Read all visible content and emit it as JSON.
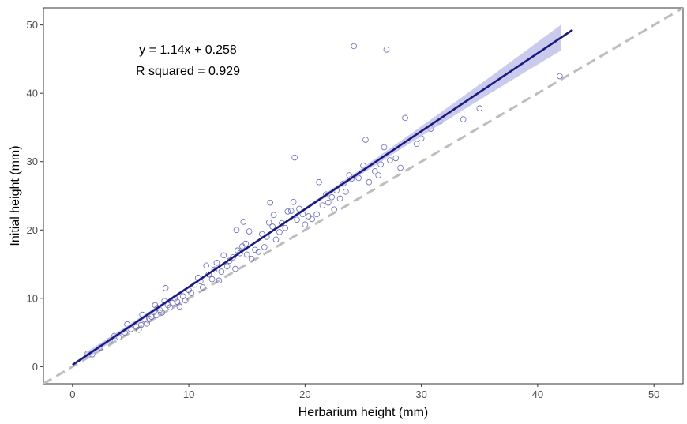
{
  "chart_data": {
    "type": "scatter",
    "title": "",
    "xlabel": "Herbarium height (mm)",
    "ylabel": "Initial height (mm)",
    "xlim": [
      -2.5,
      52.5
    ],
    "ylim": [
      -2.5,
      52.5
    ],
    "xticks": [
      0,
      10,
      20,
      30,
      40,
      50
    ],
    "yticks": [
      0,
      10,
      20,
      30,
      40,
      50
    ],
    "xtick_labels": [
      "0",
      "10",
      "20",
      "30",
      "40",
      "50"
    ],
    "ytick_labels": [
      "0",
      "10",
      "20",
      "30",
      "40",
      "50"
    ],
    "grid": false,
    "annotation": {
      "equation": "y = 1.14x + 0.258",
      "r_squared": "R squared = 0.929"
    },
    "fit": {
      "slope": 1.14,
      "intercept": 0.258,
      "x_range": [
        0,
        43
      ],
      "band_x_range": [
        1,
        42
      ],
      "color": "#1a1a80",
      "band_color": "#b8b8e6"
    },
    "identity_line": {
      "slope": 1,
      "intercept": 0,
      "style": "dashed",
      "color": "#bdbdbd"
    },
    "point_color": "#6a6ab8",
    "points": [
      [
        1.3,
        1.9
      ],
      [
        1.7,
        1.8
      ],
      [
        2.4,
        2.8
      ],
      [
        3.2,
        3.8
      ],
      [
        3.6,
        4.5
      ],
      [
        4.0,
        4.3
      ],
      [
        4.5,
        5.0
      ],
      [
        4.7,
        6.2
      ],
      [
        5.0,
        5.5
      ],
      [
        5.5,
        5.8
      ],
      [
        5.7,
        5.4
      ],
      [
        5.9,
        6.1
      ],
      [
        6.0,
        7.6
      ],
      [
        6.2,
        6.9
      ],
      [
        6.4,
        6.3
      ],
      [
        6.6,
        7.0
      ],
      [
        6.8,
        7.3
      ],
      [
        7.0,
        8.0
      ],
      [
        7.1,
        9.0
      ],
      [
        7.2,
        7.5
      ],
      [
        7.3,
        8.6
      ],
      [
        7.5,
        8.3
      ],
      [
        7.7,
        7.9
      ],
      [
        7.9,
        9.6
      ],
      [
        8.0,
        11.5
      ],
      [
        8.2,
        9.0
      ],
      [
        8.4,
        8.7
      ],
      [
        8.6,
        9.3
      ],
      [
        8.8,
        10.0
      ],
      [
        9.0,
        9.5
      ],
      [
        9.2,
        8.8
      ],
      [
        9.5,
        10.3
      ],
      [
        9.7,
        9.7
      ],
      [
        10.0,
        11.2
      ],
      [
        10.2,
        10.8
      ],
      [
        10.5,
        12.0
      ],
      [
        10.8,
        13.0
      ],
      [
        11.0,
        12.5
      ],
      [
        11.2,
        11.6
      ],
      [
        11.5,
        14.8
      ],
      [
        11.7,
        13.5
      ],
      [
        12.0,
        12.8
      ],
      [
        12.2,
        14.2
      ],
      [
        12.4,
        15.2
      ],
      [
        12.6,
        12.6
      ],
      [
        12.8,
        13.9
      ],
      [
        13.0,
        16.3
      ],
      [
        13.3,
        14.7
      ],
      [
        13.5,
        15.5
      ],
      [
        13.8,
        16.0
      ],
      [
        14.0,
        14.3
      ],
      [
        14.1,
        20.0
      ],
      [
        14.2,
        17.0
      ],
      [
        14.4,
        16.6
      ],
      [
        14.6,
        17.6
      ],
      [
        14.7,
        21.2
      ],
      [
        14.9,
        18.0
      ],
      [
        15.0,
        16.4
      ],
      [
        15.2,
        19.8
      ],
      [
        15.4,
        15.8
      ],
      [
        15.7,
        17.1
      ],
      [
        16.0,
        16.8
      ],
      [
        16.3,
        19.4
      ],
      [
        16.5,
        17.5
      ],
      [
        16.7,
        19.0
      ],
      [
        16.9,
        21.1
      ],
      [
        17.0,
        24.0
      ],
      [
        17.2,
        20.5
      ],
      [
        17.3,
        22.2
      ],
      [
        17.5,
        18.6
      ],
      [
        17.8,
        19.7
      ],
      [
        18.0,
        21.0
      ],
      [
        18.3,
        20.3
      ],
      [
        18.5,
        22.7
      ],
      [
        18.8,
        22.8
      ],
      [
        19.0,
        24.1
      ],
      [
        19.1,
        30.6
      ],
      [
        19.3,
        21.5
      ],
      [
        19.5,
        23.1
      ],
      [
        19.8,
        22.3
      ],
      [
        20.0,
        20.8
      ],
      [
        20.3,
        22.0
      ],
      [
        20.6,
        21.6
      ],
      [
        21.0,
        22.3
      ],
      [
        21.2,
        27.0
      ],
      [
        21.5,
        23.6
      ],
      [
        21.8,
        25.2
      ],
      [
        22.0,
        24.0
      ],
      [
        22.3,
        24.8
      ],
      [
        22.5,
        23.0
      ],
      [
        22.7,
        25.8
      ],
      [
        23.0,
        24.6
      ],
      [
        23.3,
        26.8
      ],
      [
        23.5,
        25.6
      ],
      [
        23.8,
        28.0
      ],
      [
        24.0,
        27.5
      ],
      [
        24.2,
        46.9
      ],
      [
        24.6,
        27.6
      ],
      [
        25.0,
        29.4
      ],
      [
        25.2,
        33.2
      ],
      [
        25.5,
        27.0
      ],
      [
        26.0,
        28.6
      ],
      [
        26.3,
        28.0
      ],
      [
        26.5,
        29.6
      ],
      [
        26.8,
        32.1
      ],
      [
        27.0,
        46.4
      ],
      [
        27.3,
        30.2
      ],
      [
        27.8,
        30.5
      ],
      [
        28.2,
        29.1
      ],
      [
        28.6,
        36.4
      ],
      [
        29.6,
        32.6
      ],
      [
        30.0,
        33.4
      ],
      [
        30.8,
        34.8
      ],
      [
        31.6,
        35.9
      ],
      [
        33.6,
        36.2
      ],
      [
        35.0,
        37.8
      ],
      [
        41.9,
        42.5
      ]
    ]
  }
}
